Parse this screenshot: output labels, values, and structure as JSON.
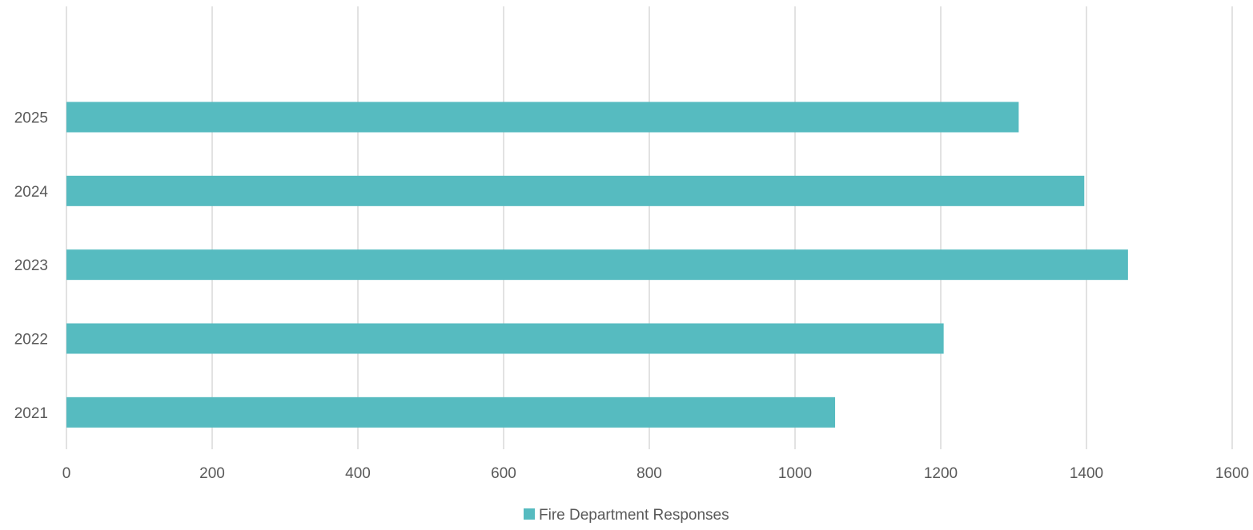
{
  "chart_data": {
    "type": "bar",
    "orientation": "horizontal",
    "categories": [
      "2021",
      "2022",
      "2023",
      "2024",
      "2025"
    ],
    "series": [
      {
        "name": "Fire Department Responses",
        "values": [
          1055,
          1204,
          1457,
          1397,
          1307
        ],
        "color": "#56BBC0"
      }
    ],
    "x_ticks": [
      "0",
      "200",
      "400",
      "600",
      "800",
      "1000",
      "1200",
      "1400",
      "1600"
    ],
    "xlim": [
      0,
      1600
    ],
    "grid": true,
    "legend": {
      "position": "bottom",
      "label": "Fire Department Responses"
    }
  }
}
